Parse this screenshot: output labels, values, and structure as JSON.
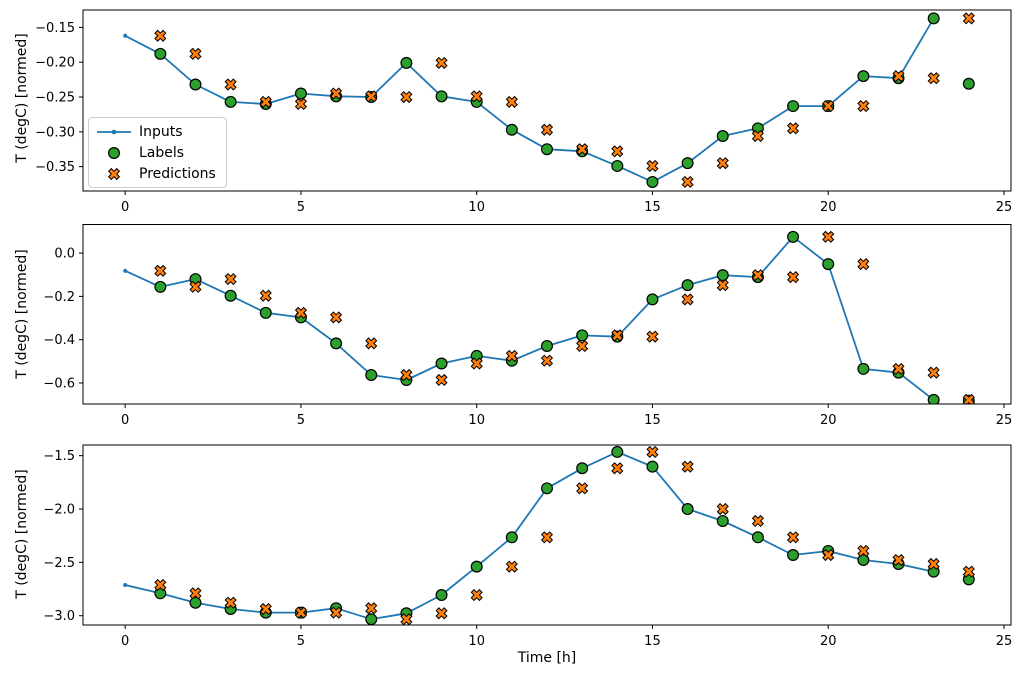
{
  "figure": {
    "xlabel": "Time [h]",
    "ylabel": "T (degC) [normed]",
    "x_ticks": [
      0,
      5,
      10,
      15,
      20,
      25
    ],
    "x_tick_labels": [
      "0",
      "5",
      "10",
      "15",
      "20",
      "25"
    ],
    "legend": {
      "items": [
        {
          "label": "Inputs",
          "marker": "line-dot",
          "color": "#1f77b4"
        },
        {
          "label": "Labels",
          "marker": "circle",
          "color": "#2ca02c"
        },
        {
          "label": "Predictions",
          "marker": "x",
          "color": "#ff7f0e"
        }
      ]
    },
    "colors": {
      "inputs": "#1f77b4",
      "labels": "#2ca02c",
      "predictions": "#ff7f0e",
      "marker_edge": "#000000",
      "axes_edge": "#000000",
      "legend_edge": "#cccccc",
      "background": "#ffffff"
    }
  },
  "chart_data": [
    {
      "type": "line",
      "title": "",
      "ylabel": "T (degC) [normed]",
      "xlim": [
        -1.2,
        25.2
      ],
      "ylim": [
        -0.385,
        -0.125
      ],
      "yticks": [
        -0.15,
        -0.2,
        -0.25,
        -0.3,
        -0.35
      ],
      "ytick_labels": [
        "−0.15",
        "−0.20",
        "−0.25",
        "−0.30",
        "−0.35"
      ],
      "legend_position": "lower-left-of-upper-area",
      "grid": false,
      "series": [
        {
          "name": "Inputs",
          "style": "line-dot",
          "x": [
            0,
            1,
            2,
            3,
            4,
            5,
            6,
            7,
            8,
            9,
            10,
            11,
            12,
            13,
            14,
            15,
            16,
            17,
            18,
            19,
            20,
            21,
            22,
            23
          ],
          "values": [
            -0.162,
            -0.188,
            -0.232,
            -0.257,
            -0.26,
            -0.245,
            -0.249,
            -0.25,
            -0.201,
            -0.249,
            -0.257,
            -0.297,
            -0.325,
            -0.328,
            -0.349,
            -0.372,
            -0.345,
            -0.306,
            -0.295,
            -0.263,
            -0.263,
            -0.22,
            -0.223,
            -0.137
          ]
        },
        {
          "name": "Labels",
          "style": "scatter-circle",
          "x": [
            1,
            2,
            3,
            4,
            5,
            6,
            7,
            8,
            9,
            10,
            11,
            12,
            13,
            14,
            15,
            16,
            17,
            18,
            19,
            20,
            21,
            22,
            23,
            24
          ],
          "values": [
            -0.188,
            -0.232,
            -0.257,
            -0.26,
            -0.245,
            -0.249,
            -0.25,
            -0.201,
            -0.249,
            -0.257,
            -0.297,
            -0.325,
            -0.328,
            -0.349,
            -0.372,
            -0.345,
            -0.306,
            -0.295,
            -0.263,
            -0.263,
            -0.22,
            -0.223,
            -0.137,
            -0.231
          ]
        },
        {
          "name": "Predictions",
          "style": "scatter-x",
          "x": [
            1,
            2,
            3,
            4,
            5,
            6,
            7,
            8,
            9,
            10,
            11,
            12,
            13,
            14,
            15,
            16,
            17,
            18,
            19,
            20,
            21,
            22,
            23,
            24
          ],
          "values": [
            -0.162,
            -0.188,
            -0.232,
            -0.257,
            -0.26,
            -0.245,
            -0.249,
            -0.25,
            -0.201,
            -0.249,
            -0.257,
            -0.297,
            -0.325,
            -0.328,
            -0.349,
            -0.372,
            -0.345,
            -0.306,
            -0.295,
            -0.263,
            -0.263,
            -0.22,
            -0.223,
            -0.137
          ]
        }
      ]
    },
    {
      "type": "line",
      "title": "",
      "ylabel": "T (degC) [normed]",
      "xlim": [
        -1.2,
        25.2
      ],
      "ylim": [
        -0.697,
        0.132
      ],
      "yticks": [
        0.0,
        -0.2,
        -0.4,
        -0.6
      ],
      "ytick_labels": [
        "0.0",
        "−0.2",
        "−0.4",
        "−0.6"
      ],
      "grid": false,
      "series": [
        {
          "name": "Inputs",
          "style": "line-dot",
          "x": [
            0,
            1,
            2,
            3,
            4,
            5,
            6,
            7,
            8,
            9,
            10,
            11,
            12,
            13,
            14,
            15,
            16,
            17,
            18,
            19,
            20,
            21,
            22,
            23
          ],
          "values": [
            -0.082,
            -0.156,
            -0.12,
            -0.197,
            -0.276,
            -0.297,
            -0.417,
            -0.563,
            -0.586,
            -0.51,
            -0.475,
            -0.497,
            -0.429,
            -0.38,
            -0.386,
            -0.214,
            -0.148,
            -0.102,
            -0.111,
            0.075,
            -0.051,
            -0.535,
            -0.552,
            -0.678
          ]
        },
        {
          "name": "Labels",
          "style": "scatter-circle",
          "x": [
            1,
            2,
            3,
            4,
            5,
            6,
            7,
            8,
            9,
            10,
            11,
            12,
            13,
            14,
            15,
            16,
            17,
            18,
            19,
            20,
            21,
            22,
            23,
            24
          ],
          "values": [
            -0.156,
            -0.12,
            -0.197,
            -0.276,
            -0.297,
            -0.417,
            -0.563,
            -0.586,
            -0.51,
            -0.475,
            -0.497,
            -0.429,
            -0.38,
            -0.386,
            -0.214,
            -0.148,
            -0.102,
            -0.111,
            0.075,
            -0.051,
            -0.535,
            -0.552,
            -0.678,
            -0.682
          ]
        },
        {
          "name": "Predictions",
          "style": "scatter-x",
          "x": [
            1,
            2,
            3,
            4,
            5,
            6,
            7,
            8,
            9,
            10,
            11,
            12,
            13,
            14,
            15,
            16,
            17,
            18,
            19,
            20,
            21,
            22,
            23,
            24
          ],
          "values": [
            -0.082,
            -0.156,
            -0.12,
            -0.197,
            -0.276,
            -0.297,
            -0.417,
            -0.563,
            -0.586,
            -0.51,
            -0.475,
            -0.497,
            -0.429,
            -0.38,
            -0.386,
            -0.214,
            -0.148,
            -0.102,
            -0.111,
            0.075,
            -0.051,
            -0.535,
            -0.552,
            -0.678
          ]
        }
      ]
    },
    {
      "type": "line",
      "title": "",
      "xlabel": "Time [h]",
      "ylabel": "T (degC) [normed]",
      "xlim": [
        -1.2,
        25.2
      ],
      "ylim": [
        -3.087,
        -1.4
      ],
      "yticks": [
        -1.5,
        -2.0,
        -2.5,
        -3.0
      ],
      "ytick_labels": [
        "−1.5",
        "−2.0",
        "−2.5",
        "−3.0"
      ],
      "grid": false,
      "series": [
        {
          "name": "Inputs",
          "style": "line-dot",
          "x": [
            0,
            1,
            2,
            3,
            4,
            5,
            6,
            7,
            8,
            9,
            10,
            11,
            12,
            13,
            14,
            15,
            16,
            17,
            18,
            19,
            20,
            21,
            22,
            23
          ],
          "values": [
            -2.712,
            -2.79,
            -2.878,
            -2.937,
            -2.971,
            -2.971,
            -2.93,
            -3.033,
            -2.977,
            -2.806,
            -2.54,
            -2.265,
            -1.806,
            -1.618,
            -1.465,
            -1.603,
            -2.0,
            -2.112,
            -2.265,
            -2.431,
            -2.393,
            -2.478,
            -2.515,
            -2.587
          ]
        },
        {
          "name": "Labels",
          "style": "scatter-circle",
          "x": [
            1,
            2,
            3,
            4,
            5,
            6,
            7,
            8,
            9,
            10,
            11,
            12,
            13,
            14,
            15,
            16,
            17,
            18,
            19,
            20,
            21,
            22,
            23,
            24
          ],
          "values": [
            -2.79,
            -2.878,
            -2.937,
            -2.971,
            -2.971,
            -2.93,
            -3.033,
            -2.977,
            -2.806,
            -2.54,
            -2.265,
            -1.806,
            -1.618,
            -1.465,
            -1.603,
            -2.0,
            -2.112,
            -2.265,
            -2.431,
            -2.393,
            -2.478,
            -2.515,
            -2.587,
            -2.659
          ]
        },
        {
          "name": "Predictions",
          "style": "scatter-x",
          "x": [
            1,
            2,
            3,
            4,
            5,
            6,
            7,
            8,
            9,
            10,
            11,
            12,
            13,
            14,
            15,
            16,
            17,
            18,
            19,
            20,
            21,
            22,
            23,
            24
          ],
          "values": [
            -2.712,
            -2.79,
            -2.878,
            -2.937,
            -2.971,
            -2.971,
            -2.93,
            -3.033,
            -2.977,
            -2.806,
            -2.54,
            -2.265,
            -1.806,
            -1.618,
            -1.465,
            -1.603,
            -2.0,
            -2.112,
            -2.265,
            -2.431,
            -2.393,
            -2.478,
            -2.515,
            -2.587
          ]
        }
      ]
    }
  ]
}
